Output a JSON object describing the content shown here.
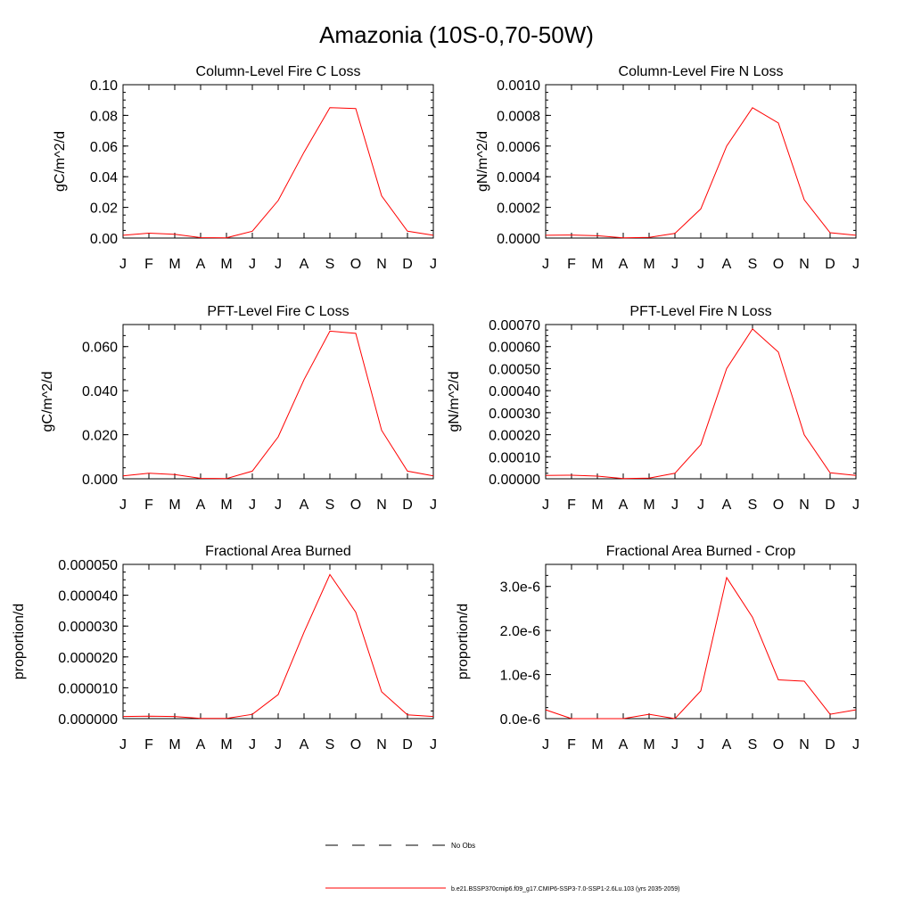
{
  "page": {
    "title": "Amazonia (10S-0,70-50W)"
  },
  "legend": {
    "obs_label": "No Obs",
    "model_label": "b.e21.BSSP370cmip6.f09_g17.CMIP6-SSP3-7.0-SSP1-2.6Lu.103 (yrs 2035-2059)",
    "model_color": "#ff0000",
    "obs_color": "#000000"
  },
  "chart_data": [
    {
      "type": "line",
      "title": "Column-Level Fire C Loss",
      "ylabel": "gC/m^2/d",
      "categories": [
        "J",
        "F",
        "M",
        "A",
        "M",
        "J",
        "J",
        "A",
        "S",
        "O",
        "N",
        "D",
        "J"
      ],
      "values": [
        0.0018,
        0.0032,
        0.0025,
        0.0003,
        0.0002,
        0.0045,
        0.0245,
        0.056,
        0.085,
        0.0845,
        0.0275,
        0.0045,
        0.0018
      ],
      "ylim": [
        0,
        0.1
      ],
      "yticks": [
        "0.00",
        "0.02",
        "0.04",
        "0.06",
        "0.08",
        "0.10"
      ],
      "grid": false
    },
    {
      "type": "line",
      "title": "Column-Level Fire N Loss",
      "ylabel": "gN/m^2/d",
      "categories": [
        "J",
        "F",
        "M",
        "A",
        "M",
        "J",
        "J",
        "A",
        "S",
        "O",
        "N",
        "D",
        "J"
      ],
      "values": [
        1.8e-05,
        2e-05,
        1.5e-05,
        2e-06,
        4e-06,
        3e-05,
        0.00019,
        0.0006,
        0.00085,
        0.00075,
        0.00025,
        3.5e-05,
        1.8e-05
      ],
      "ylim": [
        0,
        0.001
      ],
      "yticks": [
        "0.0000",
        "0.0002",
        "0.0004",
        "0.0006",
        "0.0008",
        "0.0010"
      ],
      "grid": false
    },
    {
      "type": "line",
      "title": "PFT-Level Fire C Loss",
      "ylabel": "gC/m^2/d",
      "categories": [
        "J",
        "F",
        "M",
        "A",
        "M",
        "J",
        "J",
        "A",
        "S",
        "O",
        "N",
        "D",
        "J"
      ],
      "values": [
        0.0013,
        0.0025,
        0.0019,
        0.0002,
        0.0001,
        0.0035,
        0.019,
        0.045,
        0.067,
        0.066,
        0.022,
        0.0035,
        0.0013
      ],
      "ylim": [
        0,
        0.07
      ],
      "yticks": [
        "0.000",
        "0.020",
        "0.040",
        "0.060"
      ],
      "ytick_values": [
        0,
        0.02,
        0.04,
        0.06
      ],
      "grid": false
    },
    {
      "type": "line",
      "title": "PFT-Level Fire N Loss",
      "ylabel": "gN/m^2/d",
      "categories": [
        "J",
        "F",
        "M",
        "A",
        "M",
        "J",
        "J",
        "A",
        "S",
        "O",
        "N",
        "D",
        "J"
      ],
      "values": [
        1.5e-05,
        1.6e-05,
        1.2e-05,
        1e-06,
        3e-06,
        2.5e-05,
        0.000155,
        0.0005,
        0.00068,
        0.000575,
        0.0002,
        2.7e-05,
        1.5e-05
      ],
      "ylim": [
        0,
        0.0007
      ],
      "yticks": [
        "0.00000",
        "0.00010",
        "0.00020",
        "0.00030",
        "0.00040",
        "0.00050",
        "0.00060",
        "0.00070"
      ],
      "grid": false
    },
    {
      "type": "line",
      "title": "Fractional Area Burned",
      "ylabel": "proportion/d",
      "categories": [
        "J",
        "F",
        "M",
        "A",
        "M",
        "J",
        "J",
        "A",
        "S",
        "O",
        "N",
        "D",
        "J"
      ],
      "values": [
        7e-07,
        8e-07,
        7e-07,
        1e-07,
        1e-07,
        1.4e-06,
        7.8e-06,
        2.8e-05,
        4.67e-05,
        3.45e-05,
        8.7e-06,
        1.2e-06,
        7e-07
      ],
      "ylim": [
        0,
        5e-05
      ],
      "yticks": [
        "0.000000",
        "0.000010",
        "0.000020",
        "0.000030",
        "0.000040",
        "0.000050"
      ],
      "grid": false
    },
    {
      "type": "line",
      "title": "Fractional Area Burned - Crop",
      "ylabel": "proportion/d",
      "categories": [
        "J",
        "F",
        "M",
        "A",
        "M",
        "J",
        "J",
        "A",
        "S",
        "O",
        "N",
        "D",
        "J"
      ],
      "values": [
        2e-07,
        0.0,
        0.0,
        0.0,
        1e-07,
        0.0,
        6.3e-07,
        3.2e-06,
        2.3e-06,
        8.8e-07,
        8.5e-07,
        1e-07,
        2e-07
      ],
      "ylim": [
        0,
        3.5e-06
      ],
      "yticks": [
        "0.0e-6",
        "1.0e-6",
        "2.0e-6",
        "3.0e-6"
      ],
      "ytick_values": [
        0,
        1e-06,
        2e-06,
        3e-06
      ],
      "grid": false
    }
  ]
}
